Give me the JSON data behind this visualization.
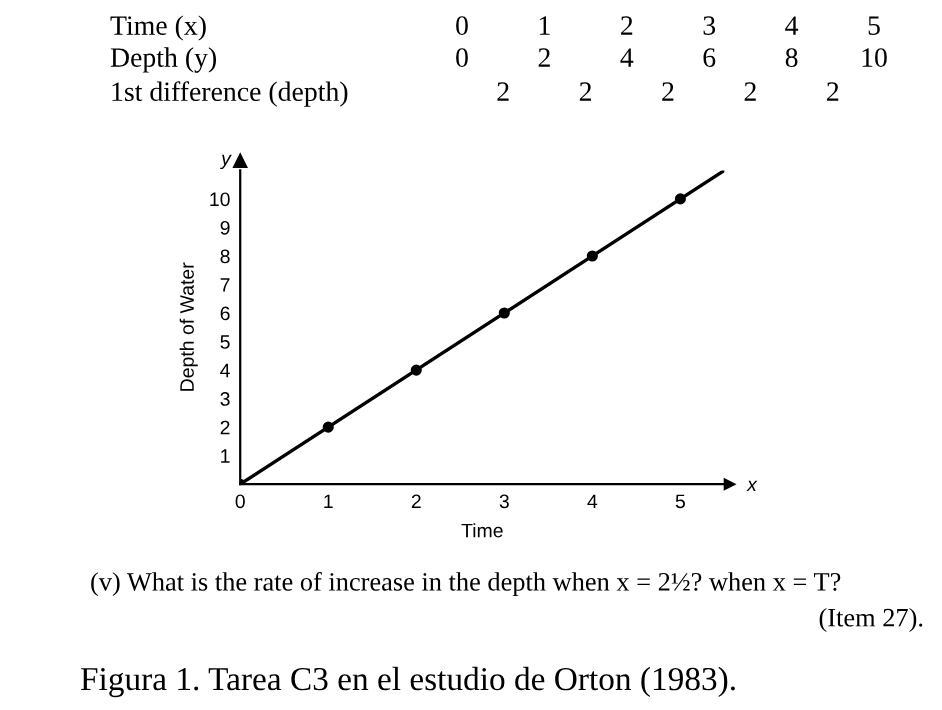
{
  "chart_data": {
    "type": "line",
    "xlabel": "Time",
    "ylabel": "Depth of Water",
    "xlim": [
      0,
      5.5
    ],
    "ylim": [
      0,
      11
    ],
    "xticks": [
      0,
      1,
      2,
      3,
      4,
      5
    ],
    "yticks": [
      1,
      2,
      3,
      4,
      5,
      6,
      7,
      8,
      9,
      10
    ],
    "grid": false,
    "legend": false,
    "series": [
      {
        "type": "scatter",
        "color": "#000000",
        "marker": "circle",
        "x": [
          0,
          1,
          2,
          3,
          4,
          5
        ],
        "values": [
          0,
          2,
          4,
          6,
          8,
          10
        ]
      },
      {
        "color": "#000000",
        "marker": "none",
        "line_style": "solid",
        "x": [
          0,
          5.5
        ],
        "values": [
          0,
          11
        ]
      }
    ],
    "annotations": [
      "Time (x)",
      "0",
      "1",
      "2",
      "3",
      "4",
      "5",
      "Depth (y)",
      "0",
      "2",
      "4",
      "6",
      "8",
      "10",
      "1st difference (depth)",
      "2",
      "2",
      "2",
      "2",
      "2",
      "y",
      "x",
      "(v) What is the rate of increase in the depth when x = 2½? when x = T?",
      "(Item 27).",
      "Figura 1. Tarea C3 en el estudio de Orton (1983)."
    ]
  }
}
